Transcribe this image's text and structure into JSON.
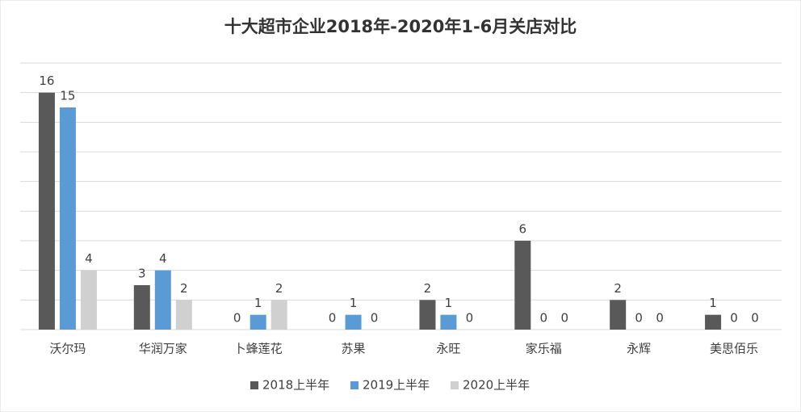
{
  "chart_data": {
    "type": "bar",
    "title": "十大超市企业2018年-2020年1-6月关店对比",
    "categories": [
      "沃尔玛",
      "华润万家",
      "卜蜂莲花",
      "苏果",
      "永旺",
      "家乐福",
      "永辉",
      "美思佰乐"
    ],
    "series": [
      {
        "name": "2018上半年",
        "color": "#595959",
        "values": [
          16,
          3,
          0,
          0,
          2,
          6,
          2,
          1
        ]
      },
      {
        "name": "2019上半年",
        "color": "#5b9bd5",
        "values": [
          15,
          4,
          1,
          1,
          1,
          0,
          0,
          0
        ]
      },
      {
        "name": "2020上半年",
        "color": "#d0d0d0",
        "values": [
          4,
          2,
          2,
          0,
          0,
          0,
          0,
          0
        ]
      }
    ],
    "ylim": [
      0,
      18
    ],
    "yticks": [
      0,
      2,
      4,
      6,
      8,
      10,
      12,
      14,
      16,
      18
    ],
    "grid": true,
    "legend": "bottom"
  }
}
